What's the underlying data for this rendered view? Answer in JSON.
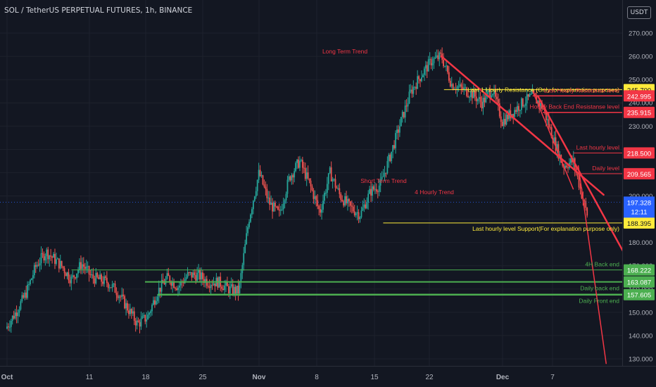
{
  "header": {
    "title": "SOL / TetherUS PERPETUAL FUTURES, 1h, BINANCE",
    "currency": "USDT"
  },
  "colors": {
    "background": "#131722",
    "grid": "#1e222d",
    "axis_text": "#b2b5be",
    "candle_up": "#26a69a",
    "candle_down": "#ef5350",
    "resistance": "#f23645",
    "support": "#ffeb3b",
    "back_end": "#4caf50"
  },
  "chart_data": {
    "type": "candlestick",
    "ylim": [
      127,
      282
    ],
    "y_ticks": [
      130,
      140,
      150,
      160,
      170,
      180,
      190,
      200,
      210,
      220,
      230,
      240,
      250,
      260,
      270
    ],
    "y_tick_labels": [
      "130.000",
      "140.000",
      "150.000",
      "160.000",
      "170.000",
      "180.000",
      "190.000",
      "200.000",
      "210.000",
      "220.000",
      "230.000",
      "240.000",
      "250.000",
      "260.000",
      "270.000"
    ],
    "x_ticks": [
      {
        "label": "Oct",
        "bold": true
      },
      {
        "label": "11"
      },
      {
        "label": "18"
      },
      {
        "label": "25"
      },
      {
        "label": "Nov",
        "bold": true
      },
      {
        "label": "8"
      },
      {
        "label": "15"
      },
      {
        "label": "22"
      },
      {
        "label": "Dec",
        "bold": true
      },
      {
        "label": "7"
      }
    ],
    "price_path": [
      [
        0,
        143
      ],
      [
        2,
        150
      ],
      [
        4,
        158
      ],
      [
        6,
        170
      ],
      [
        8,
        176
      ],
      [
        11,
        170
      ],
      [
        13,
        164
      ],
      [
        15,
        171
      ],
      [
        17,
        165
      ],
      [
        20,
        163
      ],
      [
        22,
        159
      ],
      [
        24,
        152
      ],
      [
        26,
        145
      ],
      [
        28,
        148
      ],
      [
        30,
        159
      ],
      [
        32,
        165
      ],
      [
        34,
        161
      ],
      [
        36,
        166
      ],
      [
        38,
        166
      ],
      [
        40,
        163
      ],
      [
        42,
        163
      ],
      [
        44,
        160
      ],
      [
        46,
        159
      ],
      [
        48,
        190
      ],
      [
        50,
        210
      ],
      [
        52,
        197
      ],
      [
        54,
        192
      ],
      [
        56,
        208
      ],
      [
        58,
        215
      ],
      [
        60,
        205
      ],
      [
        62,
        193
      ],
      [
        64,
        210
      ],
      [
        66,
        200
      ],
      [
        68,
        195
      ],
      [
        70,
        192
      ],
      [
        72,
        202
      ],
      [
        74,
        205
      ],
      [
        76,
        218
      ],
      [
        78,
        232
      ],
      [
        80,
        245
      ],
      [
        82,
        252
      ],
      [
        84,
        258
      ],
      [
        86,
        260
      ],
      [
        88,
        248
      ],
      [
        90,
        246
      ],
      [
        92,
        244
      ],
      [
        94,
        240
      ],
      [
        96,
        246
      ],
      [
        98,
        232
      ],
      [
        100,
        236
      ],
      [
        102,
        240
      ],
      [
        104,
        243
      ],
      [
        106,
        238
      ],
      [
        108,
        225
      ],
      [
        110,
        213
      ],
      [
        112,
        215
      ],
      [
        114,
        198
      ],
      [
        115,
        190
      ]
    ],
    "price_now": {
      "value": 197.328,
      "label": "197.328",
      "countdown": "12:11"
    },
    "levels": [
      {
        "name": "Last 1 Hourly Resistance (Only for explanation purposes)",
        "value": 245.7,
        "label": "245.700",
        "kind": "support"
      },
      {
        "name": "Last Hourly Resistanse level",
        "value": 242.995,
        "label": "242.995",
        "kind": "resistance"
      },
      {
        "name": "Hourly Back End Resistanse level",
        "value": 235.915,
        "label": "235.915",
        "kind": "resistance"
      },
      {
        "name": "Last hourly level",
        "value": 218.5,
        "label": "218.500",
        "kind": "resistance"
      },
      {
        "name": "Daily level",
        "value": 209.565,
        "label": "209.565",
        "kind": "resistance"
      },
      {
        "name": "Last hourly level Support(For explanation purpose only)",
        "value": 188.395,
        "label": "188.395",
        "kind": "support"
      },
      {
        "name": "4H Back end",
        "value": 168.222,
        "label": "168.222",
        "kind": "back_end"
      },
      {
        "name": "Daily back end",
        "value": 163.087,
        "label": "163.087",
        "kind": "back_end"
      },
      {
        "name": "Daily Front end",
        "value": 157.605,
        "label": "157.605",
        "kind": "back_end"
      }
    ],
    "trendlines": [
      {
        "name": "Long Term Trend",
        "from": [
          86,
          260
        ],
        "to": [
          118,
          200.5
        ],
        "width": 2.5
      },
      {
        "name": "Short Term Trend",
        "from": [
          104,
          245
        ],
        "to": [
          112,
          203
        ],
        "width": 1.5
      },
      {
        "name": "4 Hourly Trend",
        "from": [
          105,
          243
        ],
        "to": [
          134,
          128
        ],
        "width": 2.5
      },
      {
        "name": "",
        "from": [
          113,
          213
        ],
        "to": [
          118.5,
          128
        ],
        "width": 1.5
      }
    ]
  }
}
